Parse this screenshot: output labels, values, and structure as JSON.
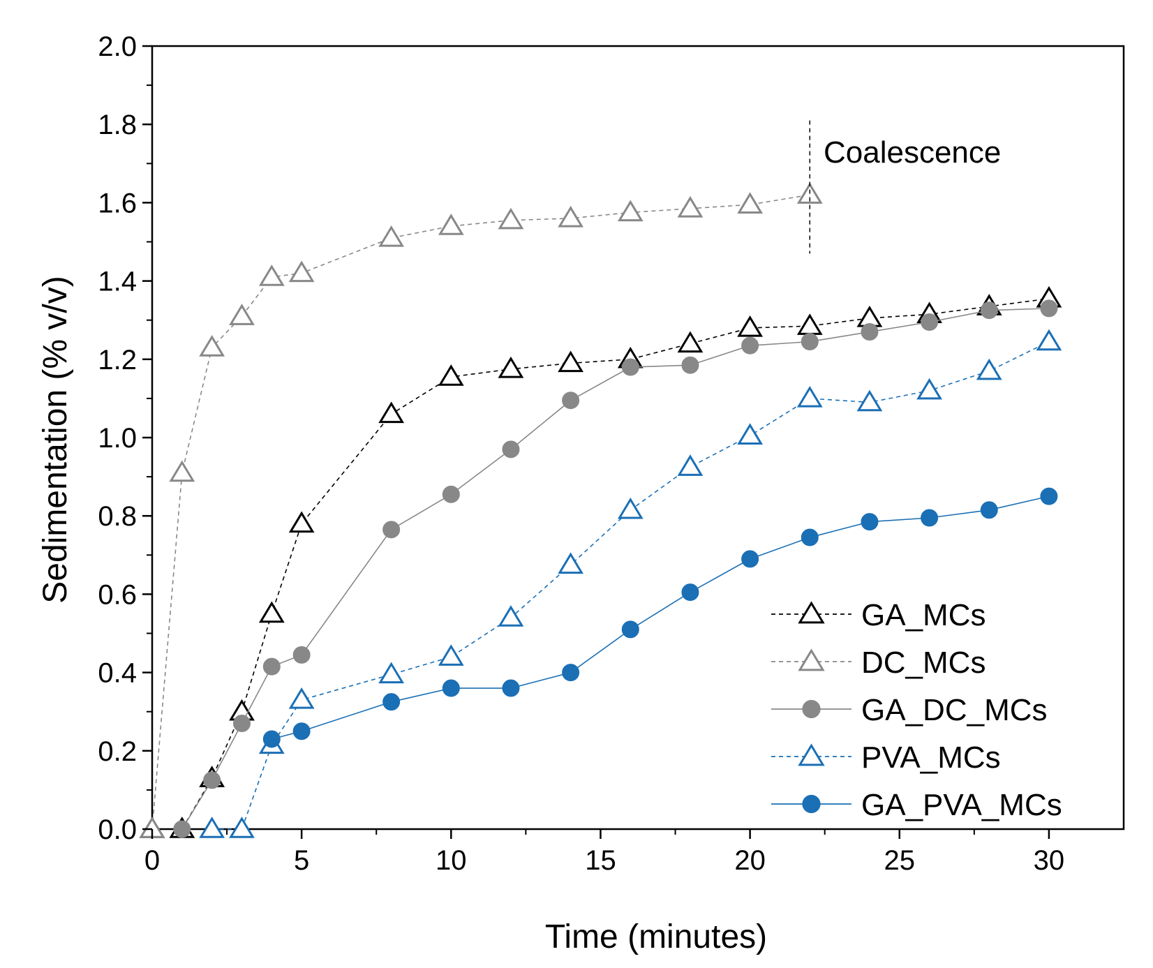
{
  "chart_data": {
    "type": "line",
    "title": "",
    "xlabel": "Time (minutes)",
    "ylabel": "Sedimentation (% v/v)",
    "xlim": [
      0,
      32.5
    ],
    "ylim": [
      0,
      2.0
    ],
    "xticks": [
      0,
      5,
      10,
      15,
      20,
      25,
      30
    ],
    "xtick_labels": [
      "0",
      "5",
      "10",
      "15",
      "20",
      "25",
      "30"
    ],
    "yticks": [
      0,
      0.2,
      0.4,
      0.6,
      0.8,
      1.0,
      1.2,
      1.4,
      1.6,
      1.8,
      2.0
    ],
    "ytick_labels": [
      "0.0",
      "0.2",
      "0.4",
      "0.6",
      "0.8",
      "1.0",
      "1.2",
      "1.4",
      "1.6",
      "1.8",
      "2.0"
    ],
    "grid": false,
    "legend_position": "bottom-right",
    "annotation": {
      "text": "Coalescence",
      "x": 22,
      "y_range": [
        1.47,
        1.81
      ]
    },
    "series": [
      {
        "name": "GA_MCs",
        "color": "#000000",
        "line": "dashed",
        "marker": "triangle-open",
        "x": [
          0,
          1,
          2,
          3,
          4,
          5,
          8,
          10,
          12,
          14,
          16,
          18,
          20,
          22,
          24,
          26,
          28,
          30
        ],
        "y": [
          0,
          0,
          0.13,
          0.3,
          0.55,
          0.78,
          1.06,
          1.155,
          1.175,
          1.19,
          1.2,
          1.24,
          1.28,
          1.285,
          1.305,
          1.315,
          1.335,
          1.355
        ]
      },
      {
        "name": "DC_MCs",
        "color": "#888888",
        "line": "dashed",
        "marker": "triangle-open",
        "x": [
          0,
          1,
          2,
          3,
          4,
          5,
          8,
          10,
          12,
          14,
          16,
          18,
          20,
          22
        ],
        "y": [
          0,
          0.91,
          1.23,
          1.31,
          1.41,
          1.42,
          1.51,
          1.54,
          1.555,
          1.56,
          1.575,
          1.585,
          1.595,
          1.62
        ]
      },
      {
        "name": "GA_DC_MCs",
        "color": "#888888",
        "line": "solid",
        "marker": "circle-filled",
        "x": [
          1,
          2,
          3,
          4,
          5,
          8,
          10,
          12,
          14,
          16,
          18,
          20,
          22,
          24,
          26,
          28,
          30
        ],
        "y": [
          0,
          0.125,
          0.27,
          0.415,
          0.445,
          0.765,
          0.855,
          0.97,
          1.095,
          1.18,
          1.185,
          1.235,
          1.245,
          1.27,
          1.295,
          1.325,
          1.33
        ]
      },
      {
        "name": "PVA_MCs",
        "color": "#1a6fb5",
        "line": "dashed",
        "marker": "triangle-open",
        "x": [
          2,
          3,
          4,
          5,
          8,
          10,
          12,
          14,
          16,
          18,
          20,
          22,
          24,
          26,
          28,
          30
        ],
        "y": [
          0,
          0,
          0.215,
          0.33,
          0.395,
          0.44,
          0.54,
          0.675,
          0.815,
          0.925,
          1.005,
          1.1,
          1.09,
          1.12,
          1.17,
          1.245
        ]
      },
      {
        "name": "GA_PVA_MCs",
        "color": "#1a6fb5",
        "line": "solid",
        "marker": "circle-filled",
        "x": [
          4,
          5,
          8,
          10,
          12,
          14,
          16,
          18,
          20,
          22,
          24,
          26,
          28,
          30
        ],
        "y": [
          0.23,
          0.25,
          0.325,
          0.36,
          0.36,
          0.4,
          0.51,
          0.605,
          0.69,
          0.745,
          0.785,
          0.795,
          0.815,
          0.85
        ]
      }
    ]
  }
}
